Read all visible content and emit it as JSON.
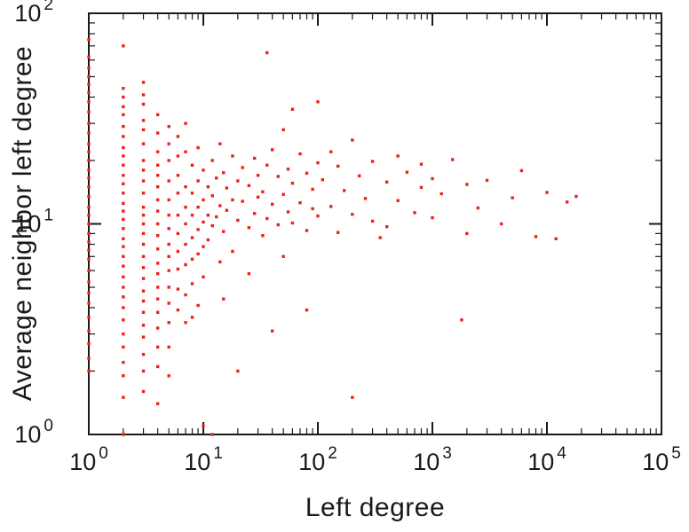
{
  "chart_data": {
    "type": "scatter",
    "title": "",
    "xlabel": "Left degree",
    "ylabel": "Average neighbor left degree",
    "xscale": "log",
    "yscale": "log",
    "xlim": [
      1,
      100000
    ],
    "ylim": [
      1,
      100
    ],
    "grid": false,
    "legend": false,
    "marker": "square",
    "point_color": "#ee2119",
    "frame_color": "#1a1a1a",
    "text_color": "#1a1a1a",
    "x_ticks": [
      {
        "value": 1,
        "base": "10",
        "exp": "0"
      },
      {
        "value": 10,
        "base": "10",
        "exp": "1"
      },
      {
        "value": 100,
        "base": "10",
        "exp": "2"
      },
      {
        "value": 1000,
        "base": "10",
        "exp": "3"
      },
      {
        "value": 10000,
        "base": "10",
        "exp": "4"
      },
      {
        "value": 100000,
        "base": "10",
        "exp": "5"
      }
    ],
    "y_ticks": [
      {
        "value": 1,
        "base": "10",
        "exp": "0"
      },
      {
        "value": 10,
        "base": "10",
        "exp": "1"
      },
      {
        "value": 100,
        "base": "10",
        "exp": "2"
      }
    ],
    "points": [
      [
        1,
        75
      ],
      [
        1,
        62
      ],
      [
        1,
        55
      ],
      [
        1,
        50
      ],
      [
        1,
        46
      ],
      [
        1,
        42
      ],
      [
        1,
        38
      ],
      [
        1,
        34
      ],
      [
        1,
        30
      ],
      [
        1,
        27
      ],
      [
        1,
        24
      ],
      [
        1,
        22
      ],
      [
        1,
        20
      ],
      [
        1,
        18
      ],
      [
        1,
        16.5
      ],
      [
        1,
        15
      ],
      [
        1,
        13.5
      ],
      [
        1,
        12
      ],
      [
        1,
        11
      ],
      [
        1,
        10
      ],
      [
        1,
        9
      ],
      [
        1,
        8.2
      ],
      [
        1,
        7.5
      ],
      [
        1,
        6.8
      ],
      [
        1,
        6
      ],
      [
        1,
        5.3
      ],
      [
        1,
        4.7
      ],
      [
        1,
        4.2
      ],
      [
        1,
        3.6
      ],
      [
        1,
        3.1
      ],
      [
        1,
        2.7
      ],
      [
        1,
        2.3
      ],
      [
        1,
        2
      ],
      [
        2,
        70
      ],
      [
        2,
        44
      ],
      [
        2,
        40
      ],
      [
        2,
        36
      ],
      [
        2,
        33
      ],
      [
        2,
        29
      ],
      [
        2,
        26
      ],
      [
        2,
        23
      ],
      [
        2,
        21
      ],
      [
        2,
        19
      ],
      [
        2,
        17
      ],
      [
        2,
        15.5
      ],
      [
        2,
        14
      ],
      [
        2,
        12.5
      ],
      [
        2,
        11.5
      ],
      [
        2,
        10.5
      ],
      [
        2,
        9.5
      ],
      [
        2,
        8.5
      ],
      [
        2,
        7.8
      ],
      [
        2,
        7
      ],
      [
        2,
        6.3
      ],
      [
        2,
        5.6
      ],
      [
        2,
        5
      ],
      [
        2,
        4.5
      ],
      [
        2,
        4
      ],
      [
        2,
        3.5
      ],
      [
        2,
        3
      ],
      [
        2,
        2.6
      ],
      [
        2,
        2.2
      ],
      [
        2,
        1.9
      ],
      [
        2,
        1.5
      ],
      [
        2,
        1
      ],
      [
        3,
        47
      ],
      [
        3,
        41
      ],
      [
        3,
        37
      ],
      [
        3,
        31
      ],
      [
        3,
        28
      ],
      [
        3,
        24
      ],
      [
        3,
        20
      ],
      [
        3,
        18
      ],
      [
        3,
        16
      ],
      [
        3,
        14
      ],
      [
        3,
        12
      ],
      [
        3,
        11
      ],
      [
        3,
        10
      ],
      [
        3,
        9
      ],
      [
        3,
        8
      ],
      [
        3,
        7
      ],
      [
        3,
        6.2
      ],
      [
        3,
        5.5
      ],
      [
        3,
        4.8
      ],
      [
        3,
        4.3
      ],
      [
        3,
        3.8
      ],
      [
        3,
        3.3
      ],
      [
        3,
        2.9
      ],
      [
        3,
        2.4
      ],
      [
        3,
        2
      ],
      [
        3,
        1.6
      ],
      [
        4,
        33
      ],
      [
        4,
        27
      ],
      [
        4,
        22
      ],
      [
        4,
        19
      ],
      [
        4,
        17
      ],
      [
        4,
        15
      ],
      [
        4,
        13
      ],
      [
        4,
        11.5
      ],
      [
        4,
        10
      ],
      [
        4,
        8.8
      ],
      [
        4,
        7.6
      ],
      [
        4,
        6.5
      ],
      [
        4,
        5.8
      ],
      [
        4,
        5
      ],
      [
        4,
        4.4
      ],
      [
        4,
        3.8
      ],
      [
        4,
        3.2
      ],
      [
        4,
        2.6
      ],
      [
        4,
        2.1
      ],
      [
        4,
        1.4
      ],
      [
        5,
        29
      ],
      [
        5,
        24
      ],
      [
        5,
        20
      ],
      [
        5,
        16
      ],
      [
        5,
        13
      ],
      [
        5,
        11
      ],
      [
        5,
        9.5
      ],
      [
        5,
        8
      ],
      [
        5,
        7
      ],
      [
        5,
        6
      ],
      [
        5,
        5
      ],
      [
        5,
        4.2
      ],
      [
        5,
        3.4
      ],
      [
        5,
        2.6
      ],
      [
        5,
        1.9
      ],
      [
        6,
        26
      ],
      [
        6,
        21
      ],
      [
        6,
        17
      ],
      [
        6,
        14
      ],
      [
        6,
        11
      ],
      [
        6,
        9
      ],
      [
        6,
        7.4
      ],
      [
        6,
        6.1
      ],
      [
        6,
        4.9
      ],
      [
        6,
        3.9
      ],
      [
        7,
        30
      ],
      [
        7,
        22
      ],
      [
        7,
        15
      ],
      [
        7,
        12
      ],
      [
        7,
        10
      ],
      [
        7,
        8
      ],
      [
        7,
        6.4
      ],
      [
        7,
        4.6
      ],
      [
        7,
        3.4
      ],
      [
        8,
        19
      ],
      [
        8,
        14
      ],
      [
        8,
        11
      ],
      [
        8,
        8.6
      ],
      [
        8,
        6.8
      ],
      [
        8,
        5.2
      ],
      [
        8,
        3.6
      ],
      [
        9,
        23
      ],
      [
        9,
        16
      ],
      [
        9,
        12
      ],
      [
        9,
        9.4
      ],
      [
        9,
        7.2
      ],
      [
        9,
        4.1
      ],
      [
        10,
        18
      ],
      [
        10,
        13
      ],
      [
        10,
        10.2
      ],
      [
        10,
        7.8
      ],
      [
        10,
        5.6
      ],
      [
        10,
        1.1
      ],
      [
        11,
        15
      ],
      [
        11,
        11
      ],
      [
        11,
        8.4
      ],
      [
        12,
        20
      ],
      [
        12,
        13.6
      ],
      [
        12,
        9.8
      ],
      [
        12,
        1
      ],
      [
        13,
        16.5
      ],
      [
        13,
        10.8
      ],
      [
        14,
        24
      ],
      [
        14,
        12.2
      ],
      [
        14,
        6.6
      ],
      [
        15,
        17.5
      ],
      [
        15,
        9.2
      ],
      [
        15,
        4.4
      ],
      [
        16,
        14.8
      ],
      [
        16,
        11.6
      ],
      [
        18,
        21
      ],
      [
        18,
        13
      ],
      [
        18,
        7.4
      ],
      [
        20,
        16
      ],
      [
        20,
        10.4
      ],
      [
        20,
        2
      ],
      [
        22,
        18.5
      ],
      [
        22,
        12.8
      ],
      [
        25,
        15.2
      ],
      [
        25,
        9.6
      ],
      [
        25,
        5.8
      ],
      [
        28,
        20.5
      ],
      [
        28,
        11.2
      ],
      [
        30,
        17
      ],
      [
        30,
        13.4
      ],
      [
        33,
        14.2
      ],
      [
        33,
        8.8
      ],
      [
        36,
        65
      ],
      [
        36,
        19
      ],
      [
        36,
        10.6
      ],
      [
        40,
        22.5
      ],
      [
        40,
        12.4
      ],
      [
        40,
        3.1
      ],
      [
        45,
        16.8
      ],
      [
        45,
        9.9
      ],
      [
        50,
        28
      ],
      [
        50,
        13.8
      ],
      [
        50,
        7
      ],
      [
        55,
        18.2
      ],
      [
        55,
        11.4
      ],
      [
        60,
        35
      ],
      [
        60,
        15.6
      ],
      [
        60,
        10.1
      ],
      [
        70,
        21.5
      ],
      [
        70,
        12.6
      ],
      [
        80,
        17.4
      ],
      [
        80,
        9.3
      ],
      [
        80,
        3.9
      ],
      [
        90,
        14.6
      ],
      [
        90,
        11.8
      ],
      [
        100,
        38
      ],
      [
        100,
        19.5
      ],
      [
        100,
        10.9
      ],
      [
        110,
        16.2
      ],
      [
        130,
        22
      ],
      [
        130,
        12.1
      ],
      [
        150,
        18.8
      ],
      [
        150,
        9.1
      ],
      [
        170,
        14.4
      ],
      [
        200,
        25
      ],
      [
        200,
        11.1
      ],
      [
        200,
        1.5
      ],
      [
        230,
        16.9
      ],
      [
        260,
        13.2
      ],
      [
        300,
        19.8
      ],
      [
        300,
        10.3
      ],
      [
        350,
        8.6
      ],
      [
        400,
        15.8
      ],
      [
        400,
        9.7
      ],
      [
        500,
        21
      ],
      [
        500,
        12.9
      ],
      [
        600,
        17.6
      ],
      [
        700,
        11.3
      ],
      [
        800,
        19.2
      ],
      [
        800,
        14.9
      ],
      [
        1000,
        16.4
      ],
      [
        1000,
        10.7
      ],
      [
        1200,
        13.9
      ],
      [
        1500,
        20.2
      ],
      [
        1800,
        3.5
      ],
      [
        2000,
        15.4
      ],
      [
        2000,
        9
      ],
      [
        2500,
        11.9
      ],
      [
        3000,
        16.1
      ],
      [
        4000,
        10
      ],
      [
        5000,
        13.3
      ],
      [
        6000,
        17.9
      ],
      [
        8000,
        8.7
      ],
      [
        10000,
        14.1
      ],
      [
        12000,
        8.5
      ],
      [
        15000,
        12.7
      ],
      [
        18000,
        13.5
      ]
    ]
  }
}
